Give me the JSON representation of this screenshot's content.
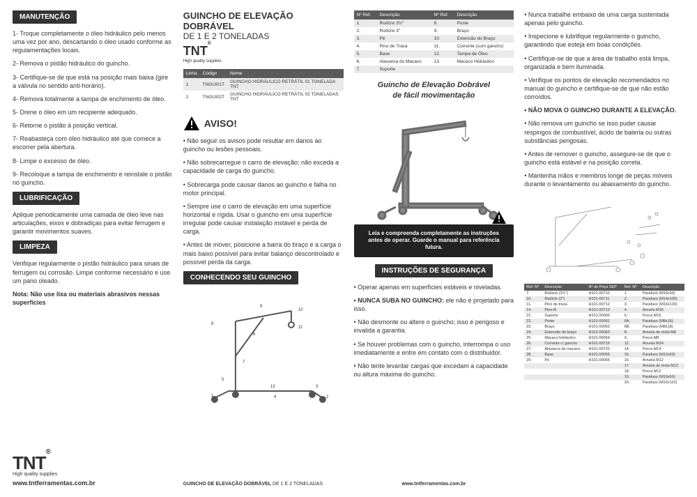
{
  "col1": {
    "h1": "MANUTENÇÃO",
    "items": [
      "1- Troque completamente o óleo hidráulico pelo menos uma vez por ano, descartando o óleo usado conforme as regulamentações locais.",
      "2- Remova o pistão hidráulico do guincho.",
      "3- Certifique-se de que está na posição mais baixa (gire a válvula no sentido anti-horário).",
      "4- Remova totalmente a tampa de enchimento de óleo.",
      "5- Drene o óleo em um recipiente adequado.",
      "6- Retorne o pistão à posição vertical.",
      "7- Reabasteça com óleo hidráulico até que comece a escorrer pela abertura.",
      "8- Limpe o excesso de óleo.",
      "9- Recoloque a tampa de enchimento e reinstale o pistão no guincho."
    ],
    "h2": "LUBRIFICAÇÃO",
    "lub": "Aplique periodicamente uma camada de óleo leve nas articulações, eixos e dobradiças para evitar ferrugem e garantir movimentos suaves.",
    "h3": "LIMPEZA",
    "lim1": "Verifique regularmente o pistão hidráulico para sinais de ferrugem ou corrosão. Limpe conforme necessário e use um pano oleado.",
    "lim2": "Nota: Não use lixa ou materiais abrasivos nessas superfícies",
    "logo": "TNT",
    "logoSub": "High quality supplies",
    "website": "www.tntferramentas.com.br"
  },
  "col2": {
    "title": "GUINCHO DE ELEVAÇÃO DOBRÁVEL",
    "subtitle": "DE 1 E 2 TONELADAS",
    "logo": "TNT",
    "logoSub": "High quality supplies",
    "tableH": [
      "Linha",
      "Código",
      "Nome"
    ],
    "rows": [
      [
        "1",
        "TNGUI01T",
        "GUINCHO HIDRÁULICO RETRÁTIL 01 TONELADA TNT"
      ],
      [
        "2",
        "TNGUI02T",
        "GUINCHO HIDRÁULICO RETRÁTIL 02 TONELADAS TNT"
      ]
    ],
    "aviso": "AVISO!",
    "warnItems": [
      "• Não seguir os avisos pode resultar em danos ao guincho ou lesões pessoais.",
      "• Não sobrecarregue o carro de elevação; não exceda a capacidade de carga do guincho.",
      "• Sobrecarga pode causar danos ao guincho e falha no motor principal.",
      "• Sempre use o carro de elevação em uma superfície horizontal e rígida. Usar o guincho em uma superfície irregular pode causar instalação instável e perda de carga.",
      "• Antes de mover, posicione a barra do braço e a carga o mais baixo possível para evitar balanço descontrolado e possível perda da carga."
    ],
    "h2": "CONHECENDO SEU GUINCHO",
    "footer": "GUINCHO DE ELEVAÇÃO DOBRÁVEL DE 1 E 2 TONELADAS"
  },
  "col3": {
    "refH": [
      "Nº Ref.",
      "Descrição",
      "Nº Ref.",
      "Descrição"
    ],
    "refRows": [
      [
        "1.",
        "Rodízio 3½\"",
        "8.",
        "Poste"
      ],
      [
        "2.",
        "Rodízio 3\"",
        "9.",
        "Braço"
      ],
      [
        "3.",
        "Pé",
        "10.",
        "Extensão do Braço"
      ],
      [
        "4.",
        "Pino de Trava",
        "11.",
        "Corrente (com gancho)"
      ],
      [
        "5.",
        "Base",
        "12.",
        "Tampa de Óleo"
      ],
      [
        "6.",
        "Alavanca do Macaco",
        "13.",
        "Macaco Hidráulico"
      ],
      [
        "7.",
        "Suporte",
        "",
        ""
      ]
    ],
    "subtitle1": "Guincho de Elevação Dobrável",
    "subtitle2": "de fácil movimentação",
    "blackBox": "Leia e compreenda completamente as instruções antes de operar. Guarde o manual para referência futura.",
    "h1": "INSTRUÇÕES DE SEGURANÇA",
    "safety": [
      "• Operar apenas em superfícies estáveis e niveladas.",
      " ele não é projetado para isso.",
      "• Não desmonte ou altere o guincho; isso é perigoso e invalida a garantia.",
      "• Se houver problemas com o guincho, interrompa o uso imediatamente e entre em contato com o distribuidor.",
      "• Não tente levantar cargas que excedam a capacidade ou altura máxima do guincho."
    ],
    "safetyBold": "• NUNCA SUBA NO GUINCHO:",
    "website": "www.tntferramentas.com.br"
  },
  "col4": {
    "items": [
      "• Nunca trabalhe embaixo de uma carga sustentada apenas pelo guincho.",
      "• Inspecione e lubrifique regularmente o guincho, garantindo que esteja em boas condições.",
      "• Certifique-se de que a área de trabalho está limpa, organizada e bem iluminada.",
      "• Verifique os pontos de elevação recomendados no manual do guincho e certifique-se de que não estão corroídos."
    ],
    "bold1": "• NÃO MOVA O GUINCHO DURANTE A ELEVAÇÃO.",
    "items2": [
      "• Não remova um guincho se isso puder causar respingos de combustível, ácido de bateria ou outras substâncias perigosas.",
      "• Antes de remover o guincho, assegure-se de que o guincho está estável e na posição correta.",
      "• Mantenha mãos e membros longe de peças móveis durante o levantamento ou abaixamento do guincho."
    ],
    "specH": [
      "Ref. Nº",
      "Descrição",
      "Nº de Peça SEP",
      "Ref. Nº",
      "Descrição"
    ],
    "specRows": [
      [
        "7.",
        "Rodízio (3½\")",
        "H101-00710",
        "1.",
        "Parafuso (M16x30)"
      ],
      [
        "10.",
        "Rodízio (3\")",
        "H101-00711",
        "2.",
        "Parafuso (M14x100)"
      ],
      [
        "11.",
        "Pino de trava",
        "H101-00712",
        "3.",
        "Parafuso (M16x130)"
      ],
      [
        "14.",
        "Pino-R",
        "H101-00713",
        "4.",
        "Arruela M16"
      ],
      [
        "21.",
        "Suporte",
        "H101-00060",
        "5.",
        "Porca M16"
      ],
      [
        "22.",
        "Poste",
        "H101-00061",
        "6A.",
        "Parafuso (M8x16)"
      ],
      [
        "23.",
        "Braço",
        "H101-00062",
        "6B.",
        "Parafuso (M8x18)"
      ],
      [
        "24.",
        "Extensão do braço",
        "H101-00063",
        "8.",
        "Arruela de mola M8"
      ],
      [
        "25.",
        "Macaco hidráulico",
        "H101-00064",
        "9.",
        "Porca M8"
      ],
      [
        "26.",
        "Corrente c/ gancho",
        "H101-00719",
        "12.",
        "Arruela M14"
      ],
      [
        "27.",
        "Alavanca de macaco",
        "H101-00720",
        "14.",
        "Porca M14"
      ],
      [
        "28.",
        "Base",
        "H101-00065",
        "15.",
        "Parafuso (M12x60)"
      ],
      [
        "29.",
        "Pé",
        "H101-00066",
        "16.",
        "Arruela M12"
      ],
      [
        "",
        "",
        "",
        "17.",
        "Arruela de mola M12"
      ],
      [
        "",
        "",
        "",
        "18.",
        "Porca M12"
      ],
      [
        "",
        "",
        "",
        "19.",
        "Parafuso (M16x60)"
      ],
      [
        "",
        "",
        "",
        "20.",
        "Parafuso (M16x110)"
      ]
    ]
  }
}
